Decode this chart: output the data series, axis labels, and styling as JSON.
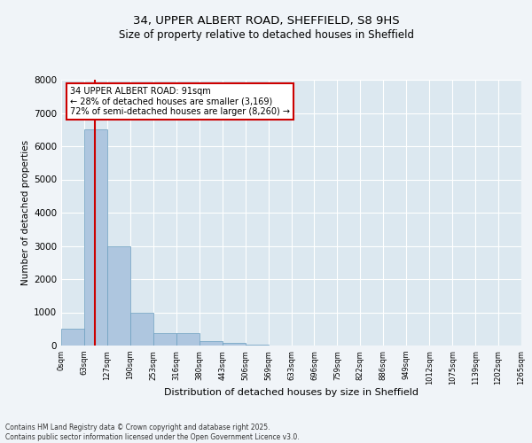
{
  "title_line1": "34, UPPER ALBERT ROAD, SHEFFIELD, S8 9HS",
  "title_line2": "Size of property relative to detached houses in Sheffield",
  "xlabel": "Distribution of detached houses by size in Sheffield",
  "ylabel": "Number of detached properties",
  "bar_values": [
    500,
    6500,
    3000,
    1000,
    380,
    380,
    130,
    80,
    30,
    10,
    5,
    3,
    2,
    1,
    1,
    0,
    0,
    0,
    0,
    0
  ],
  "bin_labels": [
    "0sqm",
    "63sqm",
    "127sqm",
    "190sqm",
    "253sqm",
    "316sqm",
    "380sqm",
    "443sqm",
    "506sqm",
    "569sqm",
    "633sqm",
    "696sqm",
    "759sqm",
    "822sqm",
    "886sqm",
    "949sqm",
    "1012sqm",
    "1075sqm",
    "1139sqm",
    "1202sqm",
    "1265sqm"
  ],
  "bar_color": "#aec6df",
  "bar_edge_color": "#6a9ec0",
  "plot_bg_color": "#dce8f0",
  "fig_bg_color": "#f0f4f8",
  "grid_color": "#ffffff",
  "vline_x": 1.45,
  "vline_color": "#cc0000",
  "annotation_text": "34 UPPER ALBERT ROAD: 91sqm\n← 28% of detached houses are smaller (3,169)\n72% of semi-detached houses are larger (8,260) →",
  "annotation_box_facecolor": "#ffffff",
  "annotation_box_edgecolor": "#cc0000",
  "ylim": [
    0,
    8000
  ],
  "yticks": [
    0,
    1000,
    2000,
    3000,
    4000,
    5000,
    6000,
    7000,
    8000
  ],
  "footer_line1": "Contains HM Land Registry data © Crown copyright and database right 2025.",
  "footer_line2": "Contains public sector information licensed under the Open Government Licence v3.0."
}
